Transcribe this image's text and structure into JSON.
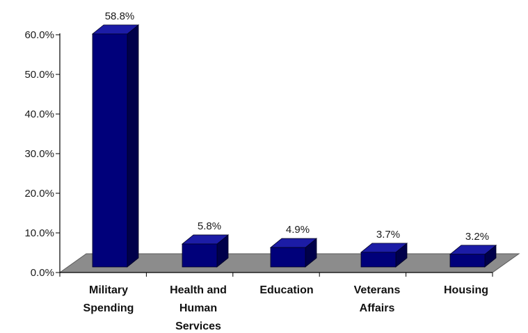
{
  "chart_data": {
    "type": "bar",
    "title": "",
    "xlabel": "",
    "ylabel": "",
    "categories": [
      [
        "Military",
        "Spending"
      ],
      [
        "Health and",
        "Human",
        "Services"
      ],
      [
        "Education"
      ],
      [
        "Veterans",
        "Affairs"
      ],
      [
        "Housing"
      ]
    ],
    "values": [
      58.8,
      5.8,
      4.9,
      3.7,
      3.2
    ],
    "data_labels": [
      "58.8%",
      "5.8%",
      "4.9%",
      "3.7%",
      "3.2%"
    ],
    "y_ticks": [
      0,
      10,
      20,
      30,
      40,
      50,
      60
    ],
    "y_tick_labels": [
      "0.0%",
      "10.0%",
      "20.0%",
      "30.0%",
      "40.0%",
      "50.0%",
      "60.0%"
    ],
    "ylim": [
      0,
      60
    ],
    "grid": false,
    "legend": "none",
    "three_d": true,
    "colors": {
      "bar_front": "#00007a",
      "bar_side": "#00004a",
      "bar_top": "#1c1ca6",
      "floor": "#8c8c8c",
      "axis": "#000000"
    }
  }
}
